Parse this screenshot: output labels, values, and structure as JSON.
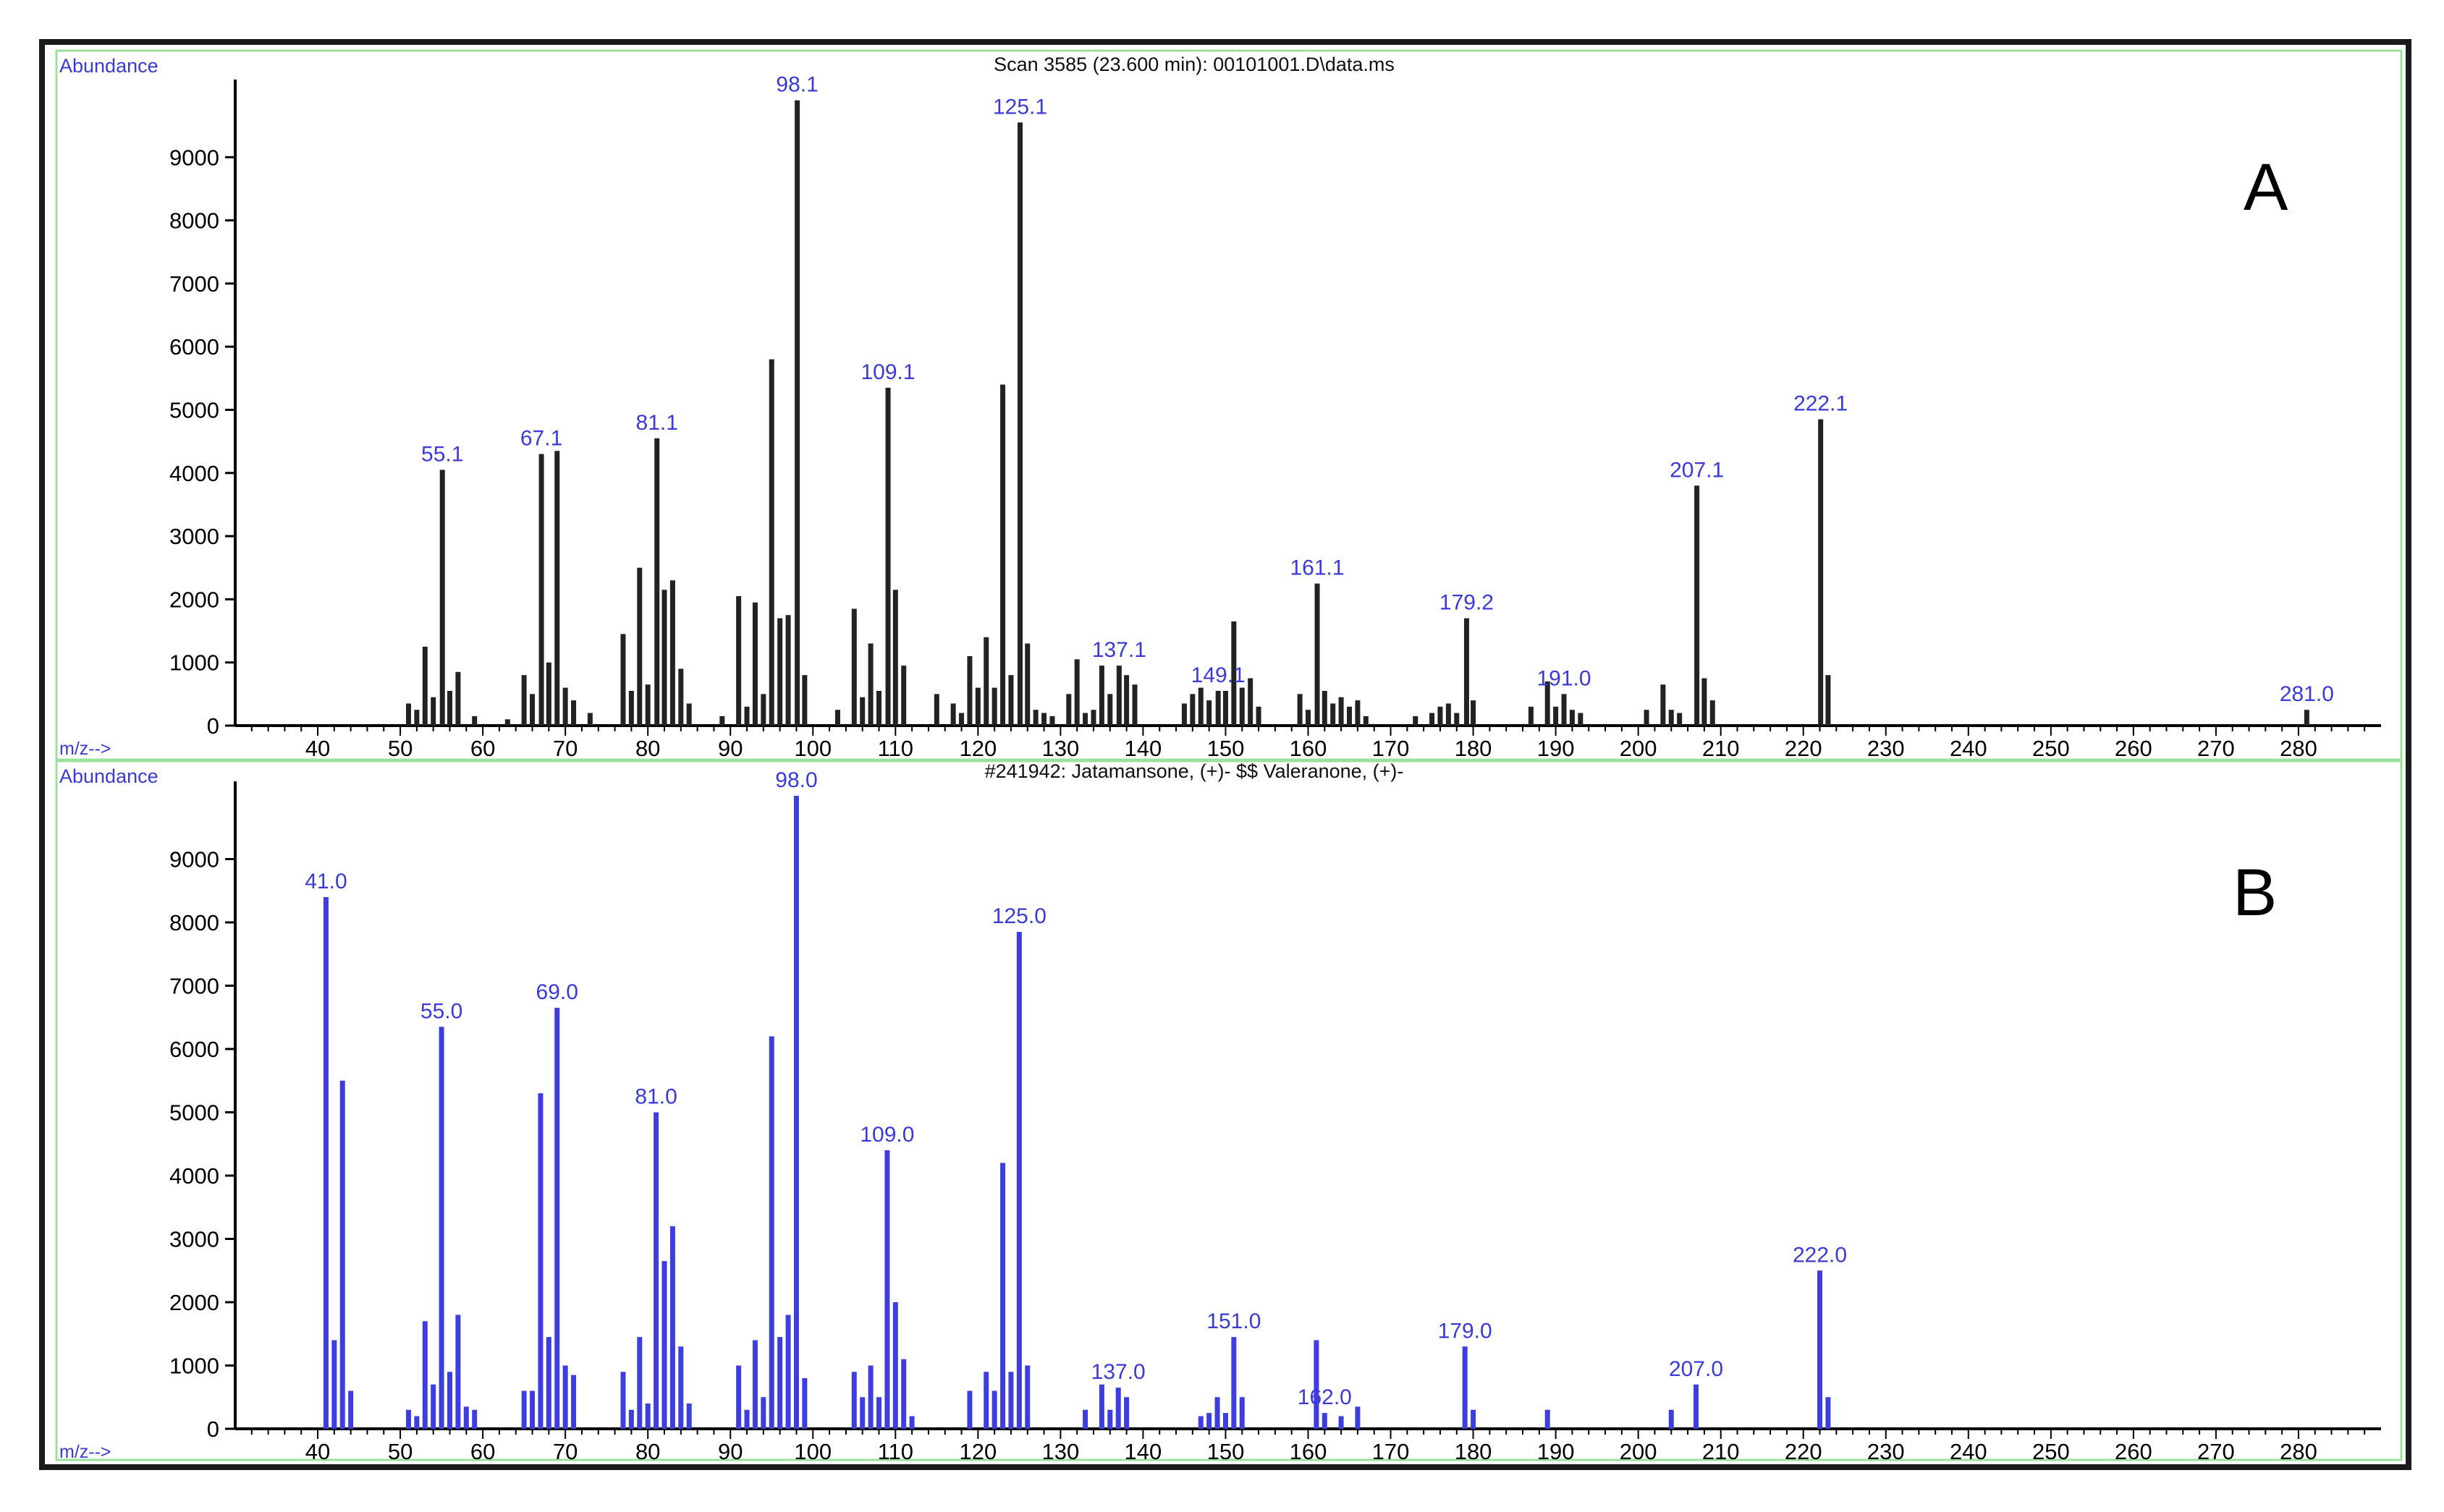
{
  "colors": {
    "frame": "#1a1a1a",
    "panel_border": "#9be09b",
    "label_text": "#3a3ad8",
    "axis": "#000000",
    "tick_text": "#000000",
    "series_a": "#222222",
    "series_b": "#3d3de0"
  },
  "chart_data": [
    {
      "type": "bar",
      "panel_letter": "A",
      "title": "Scan 3585 (23.600 min): 00101001.D\\data.ms",
      "ylabel": "Abundance",
      "xlabel": "m/z-->",
      "xlim": [
        30,
        290
      ],
      "ylim": [
        0,
        10000
      ],
      "x_ticks": [
        40,
        50,
        60,
        70,
        80,
        90,
        100,
        110,
        120,
        130,
        140,
        150,
        160,
        170,
        180,
        190,
        200,
        210,
        220,
        230,
        240,
        250,
        260,
        270,
        280
      ],
      "y_ticks": [
        0,
        1000,
        2000,
        3000,
        4000,
        5000,
        6000,
        7000,
        8000,
        9000
      ],
      "peaks": [
        {
          "mz": 51,
          "abundance": 350
        },
        {
          "mz": 52,
          "abundance": 250
        },
        {
          "mz": 53,
          "abundance": 1250
        },
        {
          "mz": 54,
          "abundance": 450
        },
        {
          "mz": 55.1,
          "abundance": 4050,
          "label": "55.1"
        },
        {
          "mz": 56,
          "abundance": 550
        },
        {
          "mz": 57,
          "abundance": 850
        },
        {
          "mz": 59,
          "abundance": 150
        },
        {
          "mz": 63,
          "abundance": 100
        },
        {
          "mz": 65,
          "abundance": 800
        },
        {
          "mz": 66,
          "abundance": 500
        },
        {
          "mz": 67.1,
          "abundance": 4300,
          "label": "67.1"
        },
        {
          "mz": 68,
          "abundance": 1000
        },
        {
          "mz": 69,
          "abundance": 4350
        },
        {
          "mz": 70,
          "abundance": 600
        },
        {
          "mz": 71,
          "abundance": 400
        },
        {
          "mz": 73,
          "abundance": 200
        },
        {
          "mz": 77,
          "abundance": 1450
        },
        {
          "mz": 78,
          "abundance": 550
        },
        {
          "mz": 79,
          "abundance": 2500
        },
        {
          "mz": 80,
          "abundance": 650
        },
        {
          "mz": 81.1,
          "abundance": 4550,
          "label": "81.1"
        },
        {
          "mz": 82,
          "abundance": 2150
        },
        {
          "mz": 83,
          "abundance": 2300
        },
        {
          "mz": 84,
          "abundance": 900
        },
        {
          "mz": 85,
          "abundance": 350
        },
        {
          "mz": 89,
          "abundance": 150
        },
        {
          "mz": 91,
          "abundance": 2050
        },
        {
          "mz": 92,
          "abundance": 300
        },
        {
          "mz": 93,
          "abundance": 1950
        },
        {
          "mz": 94,
          "abundance": 500
        },
        {
          "mz": 95,
          "abundance": 5800
        },
        {
          "mz": 96,
          "abundance": 1700
        },
        {
          "mz": 97,
          "abundance": 1750
        },
        {
          "mz": 98.1,
          "abundance": 9900,
          "label": "98.1"
        },
        {
          "mz": 99,
          "abundance": 800
        },
        {
          "mz": 103,
          "abundance": 250
        },
        {
          "mz": 105,
          "abundance": 1850
        },
        {
          "mz": 106,
          "abundance": 450
        },
        {
          "mz": 107,
          "abundance": 1300
        },
        {
          "mz": 108,
          "abundance": 550
        },
        {
          "mz": 109.1,
          "abundance": 5350,
          "label": "109.1"
        },
        {
          "mz": 110,
          "abundance": 2150
        },
        {
          "mz": 111,
          "abundance": 950
        },
        {
          "mz": 115,
          "abundance": 500
        },
        {
          "mz": 117,
          "abundance": 350
        },
        {
          "mz": 118,
          "abundance": 200
        },
        {
          "mz": 119,
          "abundance": 1100
        },
        {
          "mz": 120,
          "abundance": 600
        },
        {
          "mz": 121,
          "abundance": 1400
        },
        {
          "mz": 122,
          "abundance": 600
        },
        {
          "mz": 123,
          "abundance": 5400
        },
        {
          "mz": 124,
          "abundance": 800
        },
        {
          "mz": 125.1,
          "abundance": 9550,
          "label": "125.1"
        },
        {
          "mz": 126,
          "abundance": 1300
        },
        {
          "mz": 127,
          "abundance": 250
        },
        {
          "mz": 128,
          "abundance": 200
        },
        {
          "mz": 129,
          "abundance": 150
        },
        {
          "mz": 131,
          "abundance": 500
        },
        {
          "mz": 132,
          "abundance": 1050
        },
        {
          "mz": 133,
          "abundance": 200
        },
        {
          "mz": 134,
          "abundance": 250
        },
        {
          "mz": 135,
          "abundance": 950
        },
        {
          "mz": 136,
          "abundance": 500
        },
        {
          "mz": 137.1,
          "abundance": 950,
          "label": "137.1"
        },
        {
          "mz": 138,
          "abundance": 800
        },
        {
          "mz": 139,
          "abundance": 650
        },
        {
          "mz": 145,
          "abundance": 350
        },
        {
          "mz": 146,
          "abundance": 500
        },
        {
          "mz": 147,
          "abundance": 600
        },
        {
          "mz": 148,
          "abundance": 400
        },
        {
          "mz": 149.1,
          "abundance": 550,
          "label": "149.1"
        },
        {
          "mz": 150,
          "abundance": 550
        },
        {
          "mz": 151,
          "abundance": 1650
        },
        {
          "mz": 152,
          "abundance": 600
        },
        {
          "mz": 153,
          "abundance": 750
        },
        {
          "mz": 154,
          "abundance": 300
        },
        {
          "mz": 159,
          "abundance": 500
        },
        {
          "mz": 160,
          "abundance": 250
        },
        {
          "mz": 161.1,
          "abundance": 2250,
          "label": "161.1"
        },
        {
          "mz": 162,
          "abundance": 550
        },
        {
          "mz": 163,
          "abundance": 350
        },
        {
          "mz": 164,
          "abundance": 450
        },
        {
          "mz": 165,
          "abundance": 300
        },
        {
          "mz": 166,
          "abundance": 400
        },
        {
          "mz": 167,
          "abundance": 150
        },
        {
          "mz": 173,
          "abundance": 150
        },
        {
          "mz": 175,
          "abundance": 200
        },
        {
          "mz": 176,
          "abundance": 300
        },
        {
          "mz": 177,
          "abundance": 350
        },
        {
          "mz": 178,
          "abundance": 200
        },
        {
          "mz": 179.2,
          "abundance": 1700,
          "label": "179.2"
        },
        {
          "mz": 180,
          "abundance": 400
        },
        {
          "mz": 187,
          "abundance": 300
        },
        {
          "mz": 189,
          "abundance": 700
        },
        {
          "mz": 190,
          "abundance": 300
        },
        {
          "mz": 191.0,
          "abundance": 500,
          "label": "191.0"
        },
        {
          "mz": 192,
          "abundance": 250
        },
        {
          "mz": 193,
          "abundance": 200
        },
        {
          "mz": 201,
          "abundance": 250
        },
        {
          "mz": 203,
          "abundance": 650
        },
        {
          "mz": 204,
          "abundance": 250
        },
        {
          "mz": 205,
          "abundance": 200
        },
        {
          "mz": 207.1,
          "abundance": 3800,
          "label": "207.1"
        },
        {
          "mz": 208,
          "abundance": 750
        },
        {
          "mz": 209,
          "abundance": 400
        },
        {
          "mz": 222.1,
          "abundance": 4850,
          "label": "222.1"
        },
        {
          "mz": 223,
          "abundance": 800
        },
        {
          "mz": 281.0,
          "abundance": 250,
          "label": "281.0"
        }
      ]
    },
    {
      "type": "bar",
      "panel_letter": "B",
      "title": "#241942: Jatamansone, (+)- $$ Valeranone, (+)-",
      "ylabel": "Abundance",
      "xlabel": "m/z-->",
      "xlim": [
        30,
        290
      ],
      "ylim": [
        0,
        10000
      ],
      "x_ticks": [
        40,
        50,
        60,
        70,
        80,
        90,
        100,
        110,
        120,
        130,
        140,
        150,
        160,
        170,
        180,
        190,
        200,
        210,
        220,
        230,
        240,
        250,
        260,
        270,
        280
      ],
      "y_ticks": [
        0,
        1000,
        2000,
        3000,
        4000,
        5000,
        6000,
        7000,
        8000,
        9000
      ],
      "peaks": [
        {
          "mz": 41.0,
          "abundance": 8400,
          "label": "41.0"
        },
        {
          "mz": 42,
          "abundance": 1400
        },
        {
          "mz": 43,
          "abundance": 5500
        },
        {
          "mz": 44,
          "abundance": 600
        },
        {
          "mz": 51,
          "abundance": 300
        },
        {
          "mz": 52,
          "abundance": 200
        },
        {
          "mz": 53,
          "abundance": 1700
        },
        {
          "mz": 54,
          "abundance": 700
        },
        {
          "mz": 55.0,
          "abundance": 6350,
          "label": "55.0"
        },
        {
          "mz": 56,
          "abundance": 900
        },
        {
          "mz": 57,
          "abundance": 1800
        },
        {
          "mz": 58,
          "abundance": 350
        },
        {
          "mz": 59,
          "abundance": 300
        },
        {
          "mz": 65,
          "abundance": 600
        },
        {
          "mz": 66,
          "abundance": 600
        },
        {
          "mz": 67,
          "abundance": 5300
        },
        {
          "mz": 68,
          "abundance": 1450
        },
        {
          "mz": 69.0,
          "abundance": 6650,
          "label": "69.0"
        },
        {
          "mz": 70,
          "abundance": 1000
        },
        {
          "mz": 71,
          "abundance": 850
        },
        {
          "mz": 77,
          "abundance": 900
        },
        {
          "mz": 78,
          "abundance": 300
        },
        {
          "mz": 79,
          "abundance": 1450
        },
        {
          "mz": 80,
          "abundance": 400
        },
        {
          "mz": 81.0,
          "abundance": 5000,
          "label": "81.0"
        },
        {
          "mz": 82,
          "abundance": 2650
        },
        {
          "mz": 83,
          "abundance": 3200
        },
        {
          "mz": 84,
          "abundance": 1300
        },
        {
          "mz": 85,
          "abundance": 400
        },
        {
          "mz": 91,
          "abundance": 1000
        },
        {
          "mz": 92,
          "abundance": 300
        },
        {
          "mz": 93,
          "abundance": 1400
        },
        {
          "mz": 94,
          "abundance": 500
        },
        {
          "mz": 95,
          "abundance": 6200
        },
        {
          "mz": 96,
          "abundance": 1450
        },
        {
          "mz": 97,
          "abundance": 1800
        },
        {
          "mz": 98.0,
          "abundance": 10000,
          "label": "98.0"
        },
        {
          "mz": 99,
          "abundance": 800
        },
        {
          "mz": 105,
          "abundance": 900
        },
        {
          "mz": 106,
          "abundance": 500
        },
        {
          "mz": 107,
          "abundance": 1000
        },
        {
          "mz": 108,
          "abundance": 500
        },
        {
          "mz": 109.0,
          "abundance": 4400,
          "label": "109.0"
        },
        {
          "mz": 110,
          "abundance": 2000
        },
        {
          "mz": 111,
          "abundance": 1100
        },
        {
          "mz": 112,
          "abundance": 200
        },
        {
          "mz": 119,
          "abundance": 600
        },
        {
          "mz": 121,
          "abundance": 900
        },
        {
          "mz": 122,
          "abundance": 600
        },
        {
          "mz": 123,
          "abundance": 4200
        },
        {
          "mz": 124,
          "abundance": 900
        },
        {
          "mz": 125.0,
          "abundance": 7850,
          "label": "125.0"
        },
        {
          "mz": 126,
          "abundance": 1000
        },
        {
          "mz": 133,
          "abundance": 300
        },
        {
          "mz": 135,
          "abundance": 700
        },
        {
          "mz": 136,
          "abundance": 300
        },
        {
          "mz": 137.0,
          "abundance": 650,
          "label": "137.0"
        },
        {
          "mz": 138,
          "abundance": 500
        },
        {
          "mz": 147,
          "abundance": 200
        },
        {
          "mz": 148,
          "abundance": 250
        },
        {
          "mz": 149,
          "abundance": 500
        },
        {
          "mz": 150,
          "abundance": 250
        },
        {
          "mz": 151.0,
          "abundance": 1450,
          "label": "151.0"
        },
        {
          "mz": 152,
          "abundance": 500
        },
        {
          "mz": 161,
          "abundance": 1400
        },
        {
          "mz": 162.0,
          "abundance": 250,
          "label": "162.0"
        },
        {
          "mz": 164,
          "abundance": 200
        },
        {
          "mz": 166,
          "abundance": 350
        },
        {
          "mz": 179.0,
          "abundance": 1300,
          "label": "179.0"
        },
        {
          "mz": 180,
          "abundance": 300
        },
        {
          "mz": 189,
          "abundance": 300
        },
        {
          "mz": 204,
          "abundance": 300
        },
        {
          "mz": 207.0,
          "abundance": 700,
          "label": "207.0"
        },
        {
          "mz": 222.0,
          "abundance": 2500,
          "label": "222.0"
        },
        {
          "mz": 223,
          "abundance": 500
        }
      ]
    }
  ]
}
